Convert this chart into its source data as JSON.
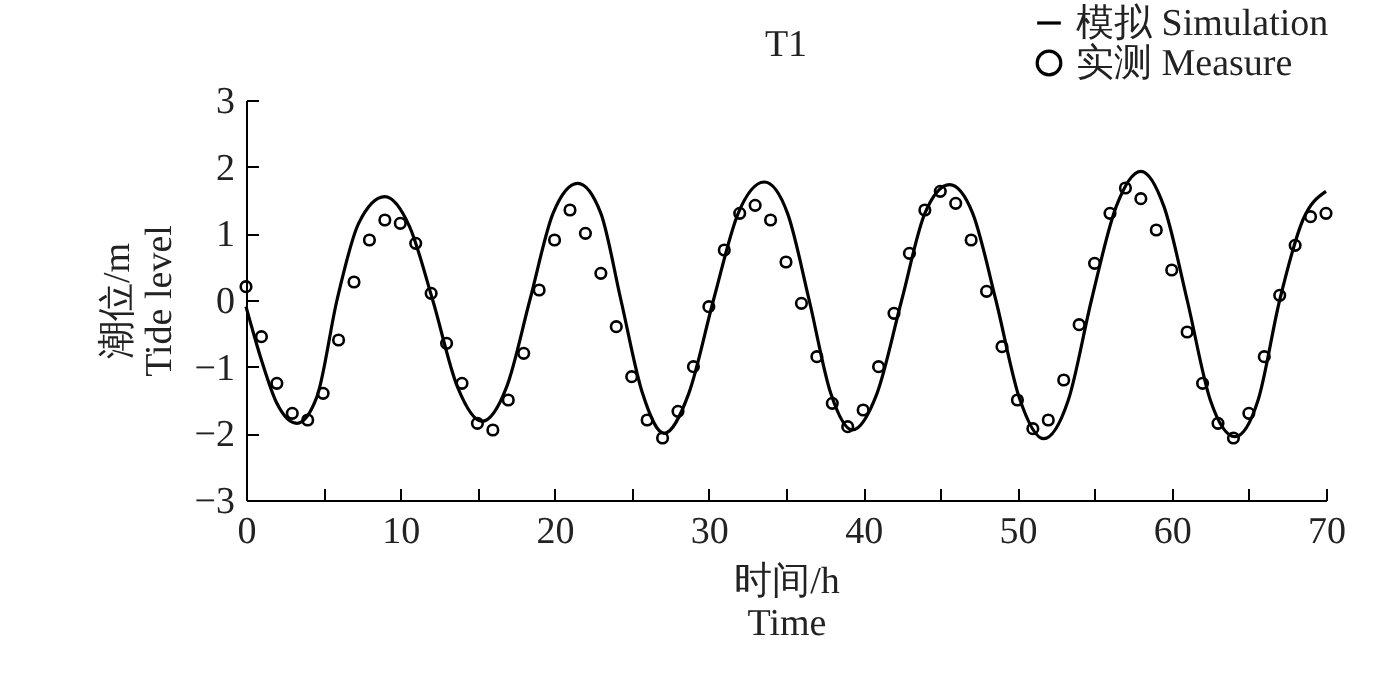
{
  "chart_data": {
    "type": "line",
    "title": "T1",
    "xlabel": "时间/h\nTime",
    "ylabel": "潮位/m\nTide level",
    "xlim": [
      0,
      70
    ],
    "xticks": [
      0,
      {
        "value": 5,
        "label": null
      },
      10,
      {
        "value": 15,
        "label": null
      },
      20,
      {
        "value": 25,
        "label": null
      },
      30,
      {
        "value": 35,
        "label": null
      },
      40,
      {
        "value": 45,
        "label": null
      },
      50,
      {
        "value": 55,
        "label": null
      },
      60,
      {
        "value": 65,
        "label": null
      },
      70
    ],
    "ylim": [
      -3,
      3
    ],
    "yticks": [
      -3,
      -2,
      -1,
      0,
      1,
      2,
      3
    ],
    "grid": false,
    "legend": "top right",
    "series": [
      {
        "name": "模拟 Simulation",
        "type": "line",
        "color": "#000000",
        "x": [
          0,
          1,
          2,
          3.3,
          4.6,
          5.9,
          7.3,
          9,
          10.6,
          12.1,
          13.7,
          15.3,
          16.9,
          18.4,
          19.9,
          21.5,
          23,
          24.3,
          25.7,
          27.1,
          28.7,
          30.3,
          31.9,
          33.6,
          35.1,
          36.5,
          37.9,
          39.3,
          40.9,
          42.5,
          44,
          45.6,
          47.1,
          48.6,
          50.1,
          51.7,
          53.3,
          54.8,
          56.4,
          58,
          59.5,
          61,
          62.5,
          64.1,
          65.6,
          67,
          68.5,
          70
        ],
        "values": [
          -0.1,
          -0.9,
          -1.55,
          -1.85,
          -1.45,
          0,
          1.15,
          1.55,
          1.1,
          0,
          -1.3,
          -1.82,
          -1.3,
          0,
          1.3,
          1.75,
          1.3,
          0,
          -1.4,
          -2.0,
          -1.4,
          0,
          1.3,
          1.77,
          1.3,
          0,
          -1.4,
          -1.95,
          -1.4,
          0,
          1.3,
          1.73,
          1.3,
          0,
          -1.45,
          -2.08,
          -1.5,
          0,
          1.4,
          1.93,
          1.4,
          0,
          -1.5,
          -2.05,
          -1.5,
          0,
          1.2,
          1.63
        ]
      },
      {
        "name": "实测 Measure",
        "type": "scatter",
        "color": "#000000",
        "x": [
          0,
          1,
          2,
          3,
          4,
          5,
          6,
          7,
          8,
          9,
          10,
          11,
          12,
          13,
          14,
          15,
          16,
          17,
          18,
          19,
          20,
          21,
          22,
          23,
          24,
          25,
          26,
          27,
          28,
          29,
          30,
          31,
          32,
          33,
          34,
          35,
          36,
          37,
          38,
          39,
          40,
          41,
          42,
          43,
          44,
          45,
          46,
          47,
          48,
          49,
          50,
          51,
          52,
          53,
          54,
          55,
          56,
          57,
          58,
          59,
          60,
          61,
          62,
          63,
          64,
          65,
          66,
          67,
          68,
          69,
          70
        ],
        "values": [
          0.2,
          -0.55,
          -1.25,
          -1.7,
          -1.8,
          -1.4,
          -0.6,
          0.27,
          0.9,
          1.2,
          1.15,
          0.85,
          0.1,
          -0.65,
          -1.25,
          -1.85,
          -1.95,
          -1.5,
          -0.8,
          0.15,
          0.9,
          1.35,
          1.0,
          0.4,
          -0.4,
          -1.15,
          -1.8,
          -2.07,
          -1.67,
          -1.0,
          -0.1,
          0.75,
          1.3,
          1.42,
          1.2,
          0.57,
          -0.05,
          -0.85,
          -1.55,
          -1.9,
          -1.65,
          -1.0,
          -0.2,
          0.7,
          1.35,
          1.63,
          1.45,
          0.9,
          0.13,
          -0.7,
          -1.5,
          -1.93,
          -1.8,
          -1.2,
          -0.37,
          0.55,
          1.3,
          1.68,
          1.52,
          1.05,
          0.45,
          -0.48,
          -1.25,
          -1.85,
          -2.07,
          -1.7,
          -0.85,
          0.07,
          0.82,
          1.25,
          1.3
        ]
      }
    ]
  }
}
